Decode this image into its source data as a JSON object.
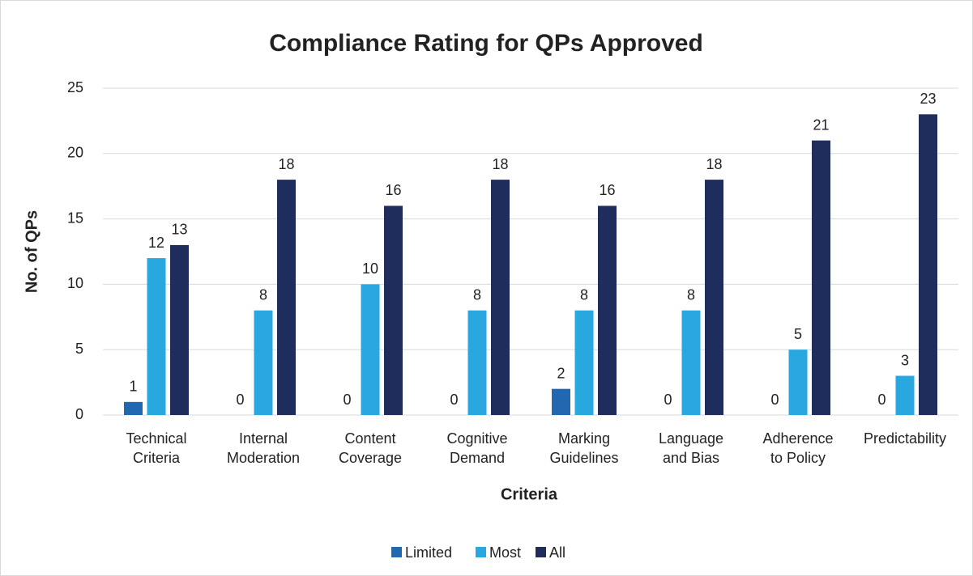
{
  "chart_data": {
    "type": "bar",
    "title": "Compliance Rating for QPs Approved",
    "x_label": "Criteria",
    "y_label": "No. of QPs",
    "categories": [
      "Technical\nCriteria",
      "Internal\nModeration",
      "Content\nCoverage",
      "Cognitive\nDemand",
      "Marking\nGuidelines",
      "Language\nand Bias",
      "Adherence\nto Policy",
      "Predictability"
    ],
    "series": [
      {
        "name": "Limited",
        "color": "#2268b1",
        "values": [
          1,
          0,
          0,
          0,
          2,
          0,
          0,
          0
        ]
      },
      {
        "name": "Most",
        "color": "#29a8e0",
        "values": [
          12,
          8,
          10,
          8,
          8,
          8,
          5,
          3
        ]
      },
      {
        "name": "All",
        "color": "#1f2d5c",
        "values": [
          13,
          18,
          16,
          18,
          16,
          18,
          21,
          23
        ]
      }
    ],
    "ylim": [
      0,
      25
    ],
    "yticks": [
      0,
      5,
      10,
      15,
      20,
      25
    ],
    "grid": true,
    "legend": "bottom"
  }
}
